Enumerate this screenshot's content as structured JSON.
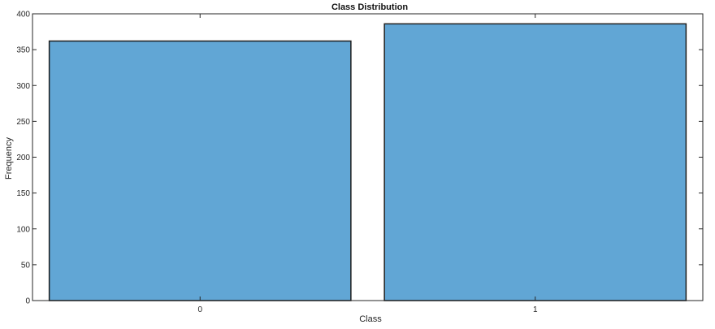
{
  "chart_data": {
    "type": "bar",
    "title": "Class Distribution",
    "xlabel": "Class",
    "ylabel": "Frequency",
    "categories": [
      "0",
      "1"
    ],
    "values": [
      362,
      386
    ],
    "ylim": [
      0,
      400
    ],
    "yticks": [
      0,
      50,
      100,
      150,
      200,
      250,
      300,
      350,
      400
    ],
    "grid": false,
    "colors": {
      "bar_fill": "#61a6d5",
      "bar_edge": "#1f1f1f",
      "axes": "#262626"
    }
  }
}
